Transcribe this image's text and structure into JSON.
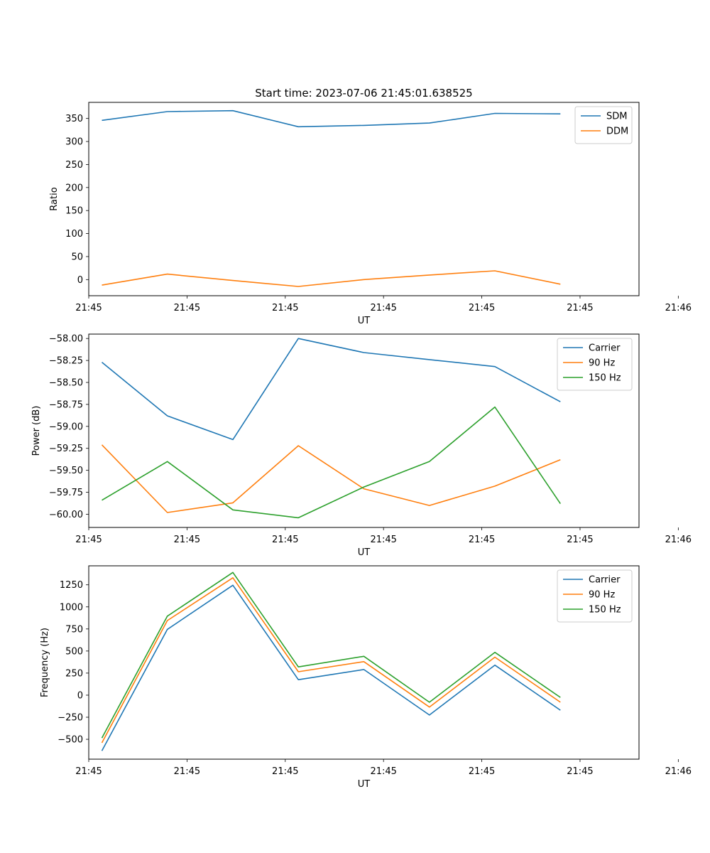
{
  "figure_title": "Start time: 2023-07-06 21:45:01.638525",
  "colors": {
    "c0": "#1f77b4",
    "c1": "#ff7f0e",
    "c2": "#2ca02c"
  },
  "chart_data": [
    {
      "type": "line",
      "title": "Start time: 2023-07-06 21:45:01.638525",
      "xlabel": "UT",
      "ylabel": "Ratio",
      "x": [
        1,
        2,
        3,
        4,
        5,
        6,
        7,
        8
      ],
      "xlim": [
        0.8,
        9.2
      ],
      "xticks": [
        0.8,
        2.3,
        3.8,
        5.3,
        6.8,
        8.3,
        9.8
      ],
      "xtick_labels": [
        "21:45",
        "21:45",
        "21:45",
        "21:45",
        "21:45",
        "21:45",
        "21:46"
      ],
      "ylim": [
        -35,
        385
      ],
      "yticks": [
        0,
        50,
        100,
        150,
        200,
        250,
        300,
        350
      ],
      "ytick_labels": [
        "0",
        "50",
        "100",
        "150",
        "200",
        "250",
        "300",
        "350"
      ],
      "legend_position": "top-right",
      "series": [
        {
          "name": "SDM",
          "color": "#1f77b4",
          "values": [
            346,
            365,
            367,
            332,
            335,
            340,
            361,
            360
          ]
        },
        {
          "name": "DDM",
          "color": "#ff7f0e",
          "values": [
            -12,
            12,
            -2,
            -15,
            0,
            10,
            19,
            -10
          ]
        }
      ]
    },
    {
      "type": "line",
      "xlabel": "UT",
      "ylabel": "Power (dB)",
      "x": [
        1,
        2,
        3,
        4,
        5,
        6,
        7,
        8
      ],
      "xlim": [
        0.8,
        9.2
      ],
      "xticks": [
        0.8,
        2.3,
        3.8,
        5.3,
        6.8,
        8.3,
        9.8
      ],
      "xtick_labels": [
        "21:45",
        "21:45",
        "21:45",
        "21:45",
        "21:45",
        "21:45",
        "21:46"
      ],
      "ylim": [
        -60.15,
        -57.95
      ],
      "yticks": [
        -60.0,
        -59.75,
        -59.5,
        -59.25,
        -59.0,
        -58.75,
        -58.5,
        -58.25,
        -58.0
      ],
      "ytick_labels": [
        "−60.00",
        "−59.75",
        "−59.50",
        "−59.25",
        "−59.00",
        "−58.75",
        "−58.50",
        "−58.25",
        "−58.00"
      ],
      "legend_position": "top-right",
      "series": [
        {
          "name": "Carrier",
          "color": "#1f77b4",
          "values": [
            -58.27,
            -58.88,
            -59.15,
            -58.0,
            -58.16,
            -58.24,
            -58.32,
            -58.72
          ]
        },
        {
          "name": "90 Hz",
          "color": "#ff7f0e",
          "values": [
            -59.21,
            -59.98,
            -59.87,
            -59.22,
            -59.71,
            -59.9,
            -59.68,
            -59.38
          ]
        },
        {
          "name": "150 Hz",
          "color": "#2ca02c",
          "values": [
            -59.84,
            -59.4,
            -59.95,
            -60.04,
            -59.69,
            -59.4,
            -58.78,
            -59.88
          ]
        }
      ]
    },
    {
      "type": "line",
      "xlabel": "UT",
      "ylabel": "Frequency (Hz)",
      "x": [
        1,
        2,
        3,
        4,
        5,
        6,
        7,
        8
      ],
      "xlim": [
        0.8,
        9.2
      ],
      "xticks": [
        0.8,
        2.3,
        3.8,
        5.3,
        6.8,
        8.3,
        9.8
      ],
      "xtick_labels": [
        "21:45",
        "21:45",
        "21:45",
        "21:45",
        "21:45",
        "21:45",
        "21:46"
      ],
      "ylim": [
        -725,
        1465
      ],
      "yticks": [
        -500,
        -250,
        0,
        250,
        500,
        750,
        1000,
        1250
      ],
      "ytick_labels": [
        "−500",
        "−250",
        "0",
        "250",
        "500",
        "750",
        "1000",
        "1250"
      ],
      "legend_position": "top-right",
      "series": [
        {
          "name": "Carrier",
          "color": "#1f77b4",
          "values": [
            -630,
            745,
            1245,
            175,
            290,
            -225,
            340,
            -170
          ]
        },
        {
          "name": "90 Hz",
          "color": "#ff7f0e",
          "values": [
            -540,
            845,
            1330,
            265,
            380,
            -135,
            430,
            -80
          ]
        },
        {
          "name": "150 Hz",
          "color": "#2ca02c",
          "values": [
            -485,
            895,
            1390,
            320,
            440,
            -80,
            485,
            -25
          ]
        }
      ]
    }
  ]
}
